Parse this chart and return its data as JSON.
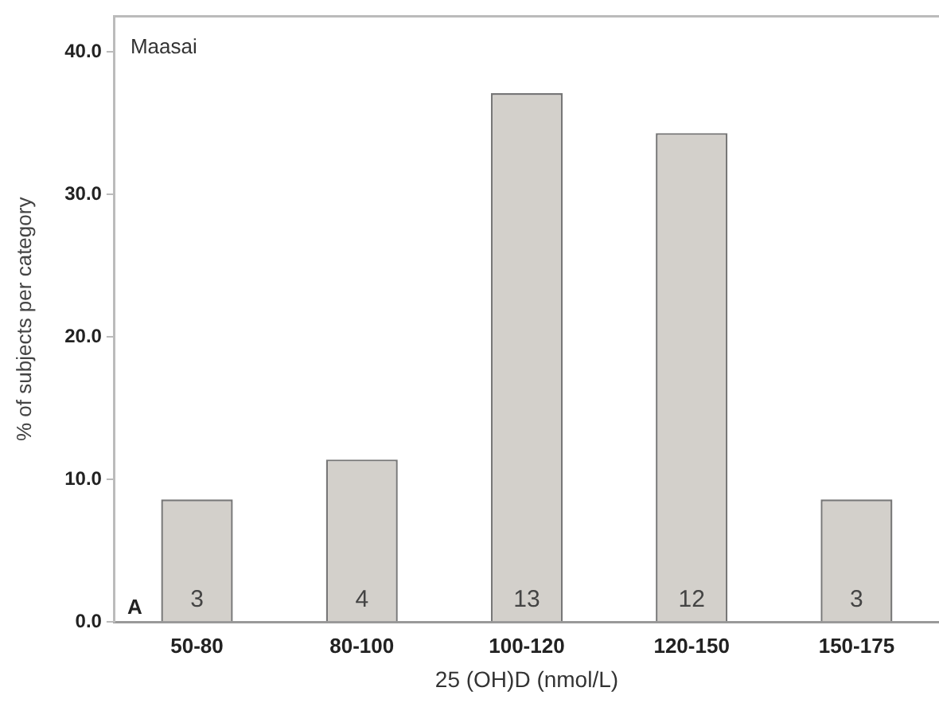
{
  "chart_data": {
    "type": "bar",
    "xlabel": "25 (OH)D (nmol/L)",
    "ylabel": "% of subjects per category",
    "categories": [
      "50-80",
      "80-100",
      "100-120",
      "120-150",
      "150-175"
    ],
    "values": [
      8.6,
      11.4,
      37.1,
      34.3,
      8.6
    ],
    "color": "#d3d0cb",
    "ylim": [
      0,
      42.5
    ],
    "yticks": [
      {
        "value": 0,
        "label": "0.0"
      },
      {
        "value": 10,
        "label": "10.0"
      },
      {
        "value": 20,
        "label": "20.0"
      },
      {
        "value": 30,
        "label": "30.0"
      },
      {
        "value": 40,
        "label": "40.0"
      }
    ],
    "annotations": [
      "Maasai",
      "A",
      {
        "text": "3",
        "x": "50-80",
        "y": 0
      },
      {
        "text": "4",
        "x": "80-100",
        "y": 0
      },
      {
        "text": "13",
        "x": "100-120",
        "y": 0
      },
      {
        "text": "12",
        "x": "120-150",
        "y": 0
      },
      {
        "text": "3",
        "x": "150-175",
        "y": 0
      }
    ],
    "grid": false,
    "legend": false
  }
}
